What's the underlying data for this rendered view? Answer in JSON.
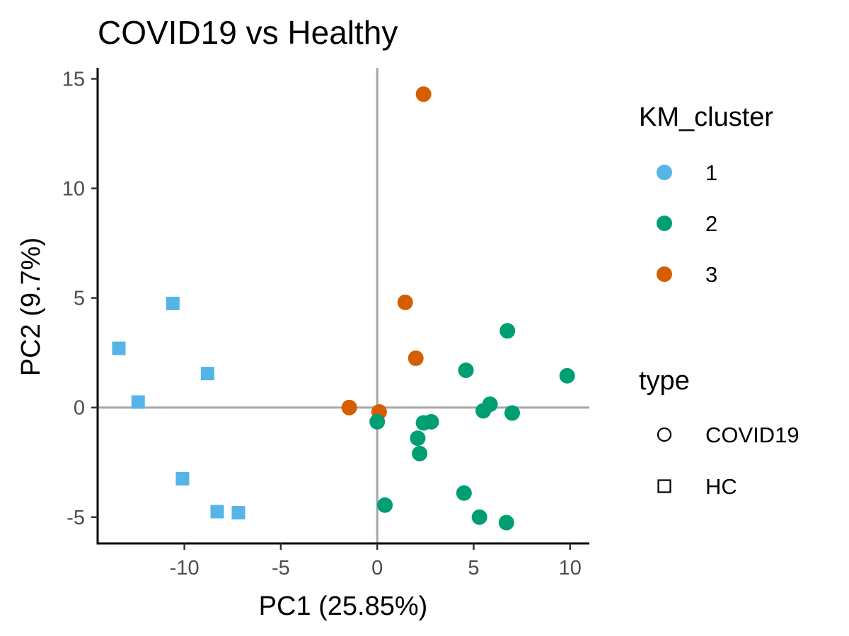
{
  "chart_data": {
    "type": "scatter",
    "title": "COVID19 vs Healthy",
    "xlabel": "PC1 (25.85%)",
    "ylabel": "PC2 (9.7%)",
    "xlim": [
      -14.5,
      11
    ],
    "ylim": [
      -6.2,
      15.5
    ],
    "xticks": [
      -10,
      -5,
      0,
      5,
      10
    ],
    "xtick_labels": [
      "-10",
      "-5",
      "0",
      "5",
      "10"
    ],
    "yticks": [
      -5,
      0,
      5,
      10,
      15
    ],
    "ytick_labels": [
      "-5",
      "0",
      "5",
      "10",
      "15"
    ],
    "reference_lines": {
      "x": 0,
      "y": 0,
      "color": "#a6a6a6"
    },
    "grid": false,
    "colors": {
      "1": "#56B4E9",
      "2": "#009E73",
      "3": "#D55E00"
    },
    "shapes": {
      "COVID19": "circle",
      "HC": "square"
    },
    "legends": [
      {
        "title": "KM_cluster",
        "kind": "color",
        "placement": "right",
        "items": [
          {
            "key": "1",
            "label": "1"
          },
          {
            "key": "2",
            "label": "2"
          },
          {
            "key": "3",
            "label": "3"
          }
        ]
      },
      {
        "title": "type",
        "kind": "shape",
        "placement": "right",
        "items": [
          {
            "key": "COVID19",
            "label": "COVID19"
          },
          {
            "key": "HC",
            "label": "HC"
          }
        ]
      }
    ],
    "points": [
      {
        "x": -13.4,
        "y": 2.7,
        "cluster": "1",
        "type": "HC"
      },
      {
        "x": -10.6,
        "y": 4.75,
        "cluster": "1",
        "type": "HC"
      },
      {
        "x": -8.8,
        "y": 1.55,
        "cluster": "1",
        "type": "HC"
      },
      {
        "x": -12.4,
        "y": 0.25,
        "cluster": "1",
        "type": "HC"
      },
      {
        "x": -10.1,
        "y": -3.25,
        "cluster": "1",
        "type": "HC"
      },
      {
        "x": -8.3,
        "y": -4.75,
        "cluster": "1",
        "type": "HC"
      },
      {
        "x": -7.2,
        "y": -4.8,
        "cluster": "1",
        "type": "HC"
      },
      {
        "x": 2.4,
        "y": 14.3,
        "cluster": "3",
        "type": "COVID19"
      },
      {
        "x": 1.45,
        "y": 4.8,
        "cluster": "3",
        "type": "COVID19"
      },
      {
        "x": 2.0,
        "y": 2.25,
        "cluster": "3",
        "type": "COVID19"
      },
      {
        "x": -1.45,
        "y": 0.0,
        "cluster": "3",
        "type": "COVID19"
      },
      {
        "x": 0.1,
        "y": -0.2,
        "cluster": "3",
        "type": "COVID19"
      },
      {
        "x": 6.75,
        "y": 3.5,
        "cluster": "2",
        "type": "COVID19"
      },
      {
        "x": 9.85,
        "y": 1.45,
        "cluster": "2",
        "type": "COVID19"
      },
      {
        "x": 4.6,
        "y": 1.7,
        "cluster": "2",
        "type": "COVID19"
      },
      {
        "x": 5.85,
        "y": 0.15,
        "cluster": "2",
        "type": "COVID19"
      },
      {
        "x": 5.5,
        "y": -0.15,
        "cluster": "2",
        "type": "COVID19"
      },
      {
        "x": 7.0,
        "y": -0.25,
        "cluster": "2",
        "type": "COVID19"
      },
      {
        "x": 0.0,
        "y": -0.65,
        "cluster": "2",
        "type": "COVID19"
      },
      {
        "x": 2.4,
        "y": -0.7,
        "cluster": "2",
        "type": "COVID19"
      },
      {
        "x": 2.8,
        "y": -0.65,
        "cluster": "2",
        "type": "COVID19"
      },
      {
        "x": 2.1,
        "y": -1.4,
        "cluster": "2",
        "type": "COVID19"
      },
      {
        "x": 2.2,
        "y": -2.1,
        "cluster": "2",
        "type": "COVID19"
      },
      {
        "x": 0.4,
        "y": -4.45,
        "cluster": "2",
        "type": "COVID19"
      },
      {
        "x": 4.5,
        "y": -3.9,
        "cluster": "2",
        "type": "COVID19"
      },
      {
        "x": 5.3,
        "y": -5.0,
        "cluster": "2",
        "type": "COVID19"
      },
      {
        "x": 6.7,
        "y": -5.25,
        "cluster": "2",
        "type": "COVID19"
      }
    ]
  }
}
